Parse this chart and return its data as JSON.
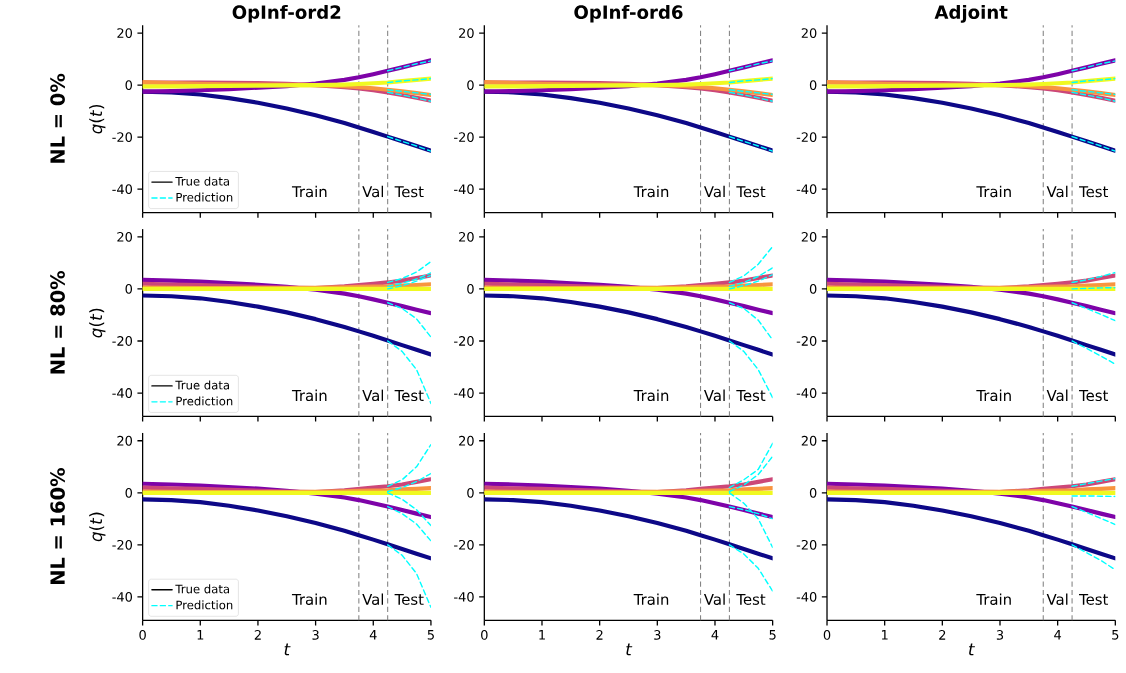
{
  "chart_data": [
    {
      "type": "line",
      "title": "OpInf-ord2",
      "ylabel": "*q*(*t*)",
      "legend": "bottom left",
      "tick_labels": "y",
      "x": [
        0,
        0.5,
        1,
        1.5,
        2,
        2.5,
        3,
        3.5,
        3.75,
        4,
        4.25,
        4.5,
        4.75,
        5
      ],
      "xlim": [
        0,
        5
      ],
      "ylim": [
        -49,
        23
      ],
      "xticks": [
        0,
        1,
        2,
        3,
        4,
        5
      ],
      "yticks": [
        -40,
        -20,
        0,
        20
      ],
      "ref_lines": [
        {
          "axis": "x",
          "value": 3.75,
          "color": "#808080",
          "line_style": "dashed"
        },
        {
          "axis": "x",
          "value": 4.25,
          "color": "#808080",
          "line_style": "dashed"
        }
      ],
      "subtitle": "NL = 0%",
      "annotations": [
        "Train",
        "Val",
        "Test"
      ],
      "series": [
        {
          "name": "True data",
          "color": "#000000",
          "line_style": "solid",
          "values": [
            null,
            null,
            null,
            null,
            null,
            null,
            null,
            null,
            null,
            null,
            null,
            null,
            null,
            null
          ]
        },
        {
          "color": "#0d0887",
          "line_style": "solid",
          "values": [
            -2.5,
            -2.8,
            -3.6,
            -5,
            -6.8,
            -9,
            -11.6,
            -14.6,
            -16.3,
            -18,
            -19.8,
            -21.6,
            -23.4,
            -25.2
          ]
        },
        {
          "color": "#7e03a8",
          "line_style": "solid",
          "values": [
            -2.5,
            -2.3,
            -2,
            -1.6,
            -1,
            -0.4,
            0.6,
            2,
            3,
            4.2,
            5.5,
            6.8,
            8.2,
            9.5
          ]
        },
        {
          "color": "#cc4778",
          "line_style": "solid",
          "values": [
            1,
            1,
            1,
            0.9,
            0.8,
            0.5,
            0,
            -0.8,
            -1.3,
            -2,
            -2.8,
            -3.8,
            -4.9,
            -6
          ]
        },
        {
          "color": "#f89540",
          "line_style": "solid",
          "values": [
            1.2,
            0.8,
            0.5,
            0.3,
            0.2,
            0.1,
            0,
            -0.4,
            -0.8,
            -1.2,
            -1.8,
            -2.4,
            -3.1,
            -3.8
          ]
        },
        {
          "color": "#f0f921",
          "line_style": "solid",
          "values": [
            -0.5,
            -0.5,
            -0.4,
            -0.3,
            -0.2,
            -0.1,
            0,
            0.2,
            0.4,
            0.7,
            1,
            1.5,
            2,
            2.5
          ]
        },
        {
          "name": "Prediction",
          "color": "#00ffff",
          "line_style": "dashed",
          "x": [
            4.25,
            4.5,
            4.75,
            5
          ],
          "values": [
            -19.8,
            -21.6,
            -23.4,
            -25.4
          ]
        },
        {
          "color": "#00ffff",
          "line_style": "dashed",
          "x": [
            4.25,
            4.5,
            4.75,
            5
          ],
          "values": [
            5.5,
            6.8,
            8.2,
            9.3
          ]
        },
        {
          "color": "#00ffff",
          "line_style": "dashed",
          "x": [
            4.25,
            4.5,
            4.75,
            5
          ],
          "values": [
            1,
            1.6,
            2,
            2.5
          ]
        },
        {
          "color": "#00ffff",
          "line_style": "dashed",
          "x": [
            4.25,
            4.5,
            4.75,
            5
          ],
          "values": [
            -2.8,
            -3.8,
            -4.9,
            -6.2
          ]
        },
        {
          "color": "#00ffff",
          "line_style": "dashed",
          "x": [
            4.25,
            4.5,
            4.75,
            5
          ],
          "values": [
            -1.8,
            -2.4,
            -3,
            -3.6
          ]
        }
      ]
    },
    {
      "type": "line",
      "title": "OpInf-ord6",
      "tick_labels": "y",
      "x": [
        0,
        0.5,
        1,
        1.5,
        2,
        2.5,
        3,
        3.5,
        3.75,
        4,
        4.25,
        4.5,
        4.75,
        5
      ],
      "xlim": [
        0,
        5
      ],
      "ylim": [
        -49,
        23
      ],
      "xticks": [
        0,
        1,
        2,
        3,
        4,
        5
      ],
      "yticks": [
        -40,
        -20,
        0,
        20
      ],
      "ref_lines": [
        {
          "axis": "x",
          "value": 3.75,
          "color": "#808080",
          "line_style": "dashed"
        },
        {
          "axis": "x",
          "value": 4.25,
          "color": "#808080",
          "line_style": "dashed"
        }
      ],
      "annotations": [
        "Train",
        "Val",
        "Test"
      ],
      "series": [
        {
          "color": "#0d0887",
          "line_style": "solid",
          "values": [
            -2.5,
            -2.8,
            -3.6,
            -5,
            -6.8,
            -9,
            -11.6,
            -14.6,
            -16.3,
            -18,
            -19.8,
            -21.6,
            -23.4,
            -25.2
          ]
        },
        {
          "color": "#7e03a8",
          "line_style": "solid",
          "values": [
            -2.5,
            -2.3,
            -2,
            -1.6,
            -1,
            -0.4,
            0.6,
            2,
            3,
            4.2,
            5.5,
            6.8,
            8.2,
            9.5
          ]
        },
        {
          "color": "#cc4778",
          "line_style": "solid",
          "values": [
            1,
            1,
            1,
            0.9,
            0.8,
            0.5,
            0,
            -0.8,
            -1.3,
            -2,
            -2.8,
            -3.8,
            -4.9,
            -6
          ]
        },
        {
          "color": "#f89540",
          "line_style": "solid",
          "values": [
            1.2,
            0.8,
            0.5,
            0.3,
            0.2,
            0.1,
            0,
            -0.4,
            -0.8,
            -1.2,
            -1.8,
            -2.4,
            -3.1,
            -3.8
          ]
        },
        {
          "color": "#f0f921",
          "line_style": "solid",
          "values": [
            -0.5,
            -0.5,
            -0.4,
            -0.3,
            -0.2,
            -0.1,
            0,
            0.2,
            0.4,
            0.7,
            1,
            1.5,
            2,
            2.5
          ]
        },
        {
          "color": "#00ffff",
          "line_style": "dashed",
          "x": [
            4.25,
            4.5,
            4.75,
            5
          ],
          "values": [
            -19.8,
            -21.6,
            -23.4,
            -25.4
          ]
        },
        {
          "color": "#00ffff",
          "line_style": "dashed",
          "x": [
            4.25,
            4.5,
            4.75,
            5
          ],
          "values": [
            5.5,
            6.8,
            8.2,
            9.3
          ]
        },
        {
          "color": "#00ffff",
          "line_style": "dashed",
          "x": [
            4.25,
            4.5,
            4.75,
            5
          ],
          "values": [
            1,
            1.6,
            2,
            2.5
          ]
        },
        {
          "color": "#00ffff",
          "line_style": "dashed",
          "x": [
            4.25,
            4.5,
            4.75,
            5
          ],
          "values": [
            -2.8,
            -3.8,
            -4.9,
            -6.2
          ]
        },
        {
          "color": "#00ffff",
          "line_style": "dashed",
          "x": [
            4.25,
            4.5,
            4.75,
            5
          ],
          "values": [
            -1.8,
            -2.4,
            -3,
            -3.6
          ]
        }
      ]
    },
    {
      "type": "line",
      "title": "Adjoint",
      "tick_labels": "y",
      "x": [
        0,
        0.5,
        1,
        1.5,
        2,
        2.5,
        3,
        3.5,
        3.75,
        4,
        4.25,
        4.5,
        4.75,
        5
      ],
      "xlim": [
        0,
        5
      ],
      "ylim": [
        -49,
        23
      ],
      "xticks": [
        0,
        1,
        2,
        3,
        4,
        5
      ],
      "yticks": [
        -40,
        -20,
        0,
        20
      ],
      "ref_lines": [
        {
          "axis": "x",
          "value": 3.75,
          "color": "#808080",
          "line_style": "dashed"
        },
        {
          "axis": "x",
          "value": 4.25,
          "color": "#808080",
          "line_style": "dashed"
        }
      ],
      "annotations": [
        "Train",
        "Val",
        "Test"
      ],
      "series": [
        {
          "color": "#0d0887",
          "line_style": "solid",
          "values": [
            -2.5,
            -2.8,
            -3.6,
            -5,
            -6.8,
            -9,
            -11.6,
            -14.6,
            -16.3,
            -18,
            -19.8,
            -21.6,
            -23.4,
            -25.2
          ]
        },
        {
          "color": "#7e03a8",
          "line_style": "solid",
          "values": [
            -2.5,
            -2.3,
            -2,
            -1.6,
            -1,
            -0.4,
            0.6,
            2,
            3,
            4.2,
            5.5,
            6.8,
            8.2,
            9.5
          ]
        },
        {
          "color": "#cc4778",
          "line_style": "solid",
          "values": [
            1,
            1,
            1,
            0.9,
            0.8,
            0.5,
            0,
            -0.8,
            -1.3,
            -2,
            -2.8,
            -3.8,
            -4.9,
            -6
          ]
        },
        {
          "color": "#f89540",
          "line_style": "solid",
          "values": [
            1.2,
            0.8,
            0.5,
            0.3,
            0.2,
            0.1,
            0,
            -0.4,
            -0.8,
            -1.2,
            -1.8,
            -2.4,
            -3.1,
            -3.8
          ]
        },
        {
          "color": "#f0f921",
          "line_style": "solid",
          "values": [
            -0.5,
            -0.5,
            -0.4,
            -0.3,
            -0.2,
            -0.1,
            0,
            0.2,
            0.4,
            0.7,
            1,
            1.5,
            2,
            2.5
          ]
        },
        {
          "color": "#00ffff",
          "line_style": "dashed",
          "x": [
            4.25,
            4.5,
            4.75,
            5
          ],
          "values": [
            -19.8,
            -21.6,
            -23.4,
            -25.4
          ]
        },
        {
          "color": "#00ffff",
          "line_style": "dashed",
          "x": [
            4.25,
            4.5,
            4.75,
            5
          ],
          "values": [
            5.5,
            6.8,
            8.2,
            9.3
          ]
        },
        {
          "color": "#00ffff",
          "line_style": "dashed",
          "x": [
            4.25,
            4.5,
            4.75,
            5
          ],
          "values": [
            1,
            1.6,
            2,
            2.5
          ]
        },
        {
          "color": "#00ffff",
          "line_style": "dashed",
          "x": [
            4.25,
            4.5,
            4.75,
            5
          ],
          "values": [
            -2.8,
            -3.8,
            -4.9,
            -6.2
          ]
        },
        {
          "color": "#00ffff",
          "line_style": "dashed",
          "x": [
            4.25,
            4.5,
            4.75,
            5
          ],
          "values": [
            -1.8,
            -2.4,
            -3,
            -3.6
          ]
        }
      ]
    },
    {
      "type": "line",
      "ylabel": "*q*(*t*)",
      "legend": "bottom left",
      "tick_labels": "y",
      "x": [
        0,
        0.5,
        1,
        1.5,
        2,
        2.5,
        3,
        3.5,
        3.75,
        4,
        4.25,
        4.5,
        4.75,
        5
      ],
      "xlim": [
        0,
        5
      ],
      "ylim": [
        -49,
        23
      ],
      "xticks": [
        0,
        1,
        2,
        3,
        4,
        5
      ],
      "yticks": [
        -40,
        -20,
        0,
        20
      ],
      "ref_lines": [
        {
          "axis": "x",
          "value": 3.75,
          "color": "#808080",
          "line_style": "dashed"
        },
        {
          "axis": "x",
          "value": 4.25,
          "color": "#808080",
          "line_style": "dashed"
        }
      ],
      "subtitle": "NL = 80%",
      "annotations": [
        "Train",
        "Val",
        "Test"
      ],
      "series": [
        {
          "name": "True data",
          "color": "#000000",
          "line_style": "solid",
          "values": [
            null,
            null,
            null,
            null,
            null,
            null,
            null,
            null,
            null,
            null,
            null,
            null,
            null,
            null
          ]
        },
        {
          "color": "#0d0887",
          "line_style": "solid",
          "values": [
            -2.5,
            -2.8,
            -3.6,
            -5,
            -6.8,
            -9,
            -11.6,
            -14.6,
            -16.3,
            -18,
            -19.8,
            -21.6,
            -23.4,
            -25.2
          ]
        },
        {
          "color": "#7e03a8",
          "line_style": "solid",
          "values": [
            3.5,
            3.2,
            2.8,
            2.2,
            1.6,
            0.8,
            -0.3,
            -1.8,
            -2.8,
            -4,
            -5.3,
            -6.6,
            -8,
            -9.3
          ]
        },
        {
          "color": "#cc4778",
          "line_style": "solid",
          "values": [
            2,
            1.7,
            1.5,
            1.1,
            0.8,
            0.5,
            0.3,
            1,
            1.5,
            2,
            2.5,
            3.2,
            4.2,
            5.2
          ]
        },
        {
          "color": "#f89540",
          "line_style": "solid",
          "values": [
            0.5,
            0.4,
            0.3,
            0.3,
            0.3,
            0.3,
            0.4,
            0.6,
            0.8,
            0.9,
            1,
            1.3,
            1.5,
            1.8
          ]
        },
        {
          "color": "#f0f921",
          "line_style": "solid",
          "values": [
            0,
            0,
            0,
            0,
            0,
            0,
            0,
            0,
            0,
            0,
            0,
            0,
            0,
            0
          ]
        },
        {
          "name": "Prediction",
          "color": "#00ffff",
          "line_style": "dashed",
          "x": [
            4.25,
            4.5,
            4.75,
            5
          ],
          "values": [
            -20,
            -24,
            -31,
            -44
          ]
        },
        {
          "color": "#00ffff",
          "line_style": "dashed",
          "x": [
            4.25,
            4.5,
            4.75,
            5
          ],
          "values": [
            -5.3,
            -7.5,
            -11.5,
            -18.5
          ]
        },
        {
          "color": "#00ffff",
          "line_style": "dashed",
          "x": [
            4.25,
            4.5,
            4.75,
            5
          ],
          "values": [
            2.5,
            4,
            6.5,
            10.5
          ]
        },
        {
          "color": "#00ffff",
          "line_style": "dashed",
          "x": [
            4.25,
            4.5,
            4.75,
            5
          ],
          "values": [
            1,
            2.2,
            3.8,
            6.2
          ]
        },
        {
          "color": "#00ffff",
          "line_style": "dashed",
          "x": [
            4.25,
            4.5,
            4.75,
            5
          ],
          "values": [
            0,
            1.2,
            3,
            5.2
          ]
        }
      ]
    },
    {
      "type": "line",
      "tick_labels": "y",
      "x": [
        0,
        0.5,
        1,
        1.5,
        2,
        2.5,
        3,
        3.5,
        3.75,
        4,
        4.25,
        4.5,
        4.75,
        5
      ],
      "xlim": [
        0,
        5
      ],
      "ylim": [
        -49,
        23
      ],
      "xticks": [
        0,
        1,
        2,
        3,
        4,
        5
      ],
      "yticks": [
        -40,
        -20,
        0,
        20
      ],
      "ref_lines": [
        {
          "axis": "x",
          "value": 3.75,
          "color": "#808080",
          "line_style": "dashed"
        },
        {
          "axis": "x",
          "value": 4.25,
          "color": "#808080",
          "line_style": "dashed"
        }
      ],
      "annotations": [
        "Train",
        "Val",
        "Test"
      ],
      "series": [
        {
          "color": "#0d0887",
          "line_style": "solid",
          "values": [
            -2.5,
            -2.8,
            -3.6,
            -5,
            -6.8,
            -9,
            -11.6,
            -14.6,
            -16.3,
            -18,
            -19.8,
            -21.6,
            -23.4,
            -25.2
          ]
        },
        {
          "color": "#7e03a8",
          "line_style": "solid",
          "values": [
            3.5,
            3.2,
            2.8,
            2.2,
            1.6,
            0.8,
            -0.3,
            -1.8,
            -2.8,
            -4,
            -5.3,
            -6.6,
            -8,
            -9.3
          ]
        },
        {
          "color": "#cc4778",
          "line_style": "solid",
          "values": [
            2,
            1.7,
            1.5,
            1.1,
            0.8,
            0.5,
            0.3,
            1,
            1.5,
            2,
            2.5,
            3.2,
            4.2,
            5.2
          ]
        },
        {
          "color": "#f89540",
          "line_style": "solid",
          "values": [
            0.5,
            0.4,
            0.3,
            0.3,
            0.3,
            0.3,
            0.4,
            0.6,
            0.8,
            0.9,
            1,
            1.3,
            1.5,
            1.8
          ]
        },
        {
          "color": "#f0f921",
          "line_style": "solid",
          "values": [
            0,
            0,
            0,
            0,
            0,
            0,
            0,
            0,
            0,
            0,
            0,
            0,
            0,
            0
          ]
        },
        {
          "color": "#00ffff",
          "line_style": "dashed",
          "x": [
            4.25,
            4.5,
            4.75,
            5
          ],
          "values": [
            -20,
            -24,
            -31,
            -41.8
          ]
        },
        {
          "color": "#00ffff",
          "line_style": "dashed",
          "x": [
            4.25,
            4.5,
            4.75,
            5
          ],
          "values": [
            -5.3,
            -7.5,
            -12,
            -19.6
          ]
        },
        {
          "color": "#00ffff",
          "line_style": "dashed",
          "x": [
            4.25,
            4.5,
            4.75,
            5
          ],
          "values": [
            2.5,
            5,
            9.5,
            16.3
          ]
        },
        {
          "color": "#00ffff",
          "line_style": "dashed",
          "x": [
            4.25,
            4.5,
            4.75,
            5
          ],
          "values": [
            1,
            2.5,
            4.8,
            8.1
          ]
        },
        {
          "color": "#00ffff",
          "line_style": "dashed",
          "x": [
            4.25,
            4.5,
            4.75,
            5
          ],
          "values": [
            0,
            1.3,
            3,
            5.5
          ]
        }
      ]
    },
    {
      "type": "line",
      "tick_labels": "y",
      "x": [
        0,
        0.5,
        1,
        1.5,
        2,
        2.5,
        3,
        3.5,
        3.75,
        4,
        4.25,
        4.5,
        4.75,
        5
      ],
      "xlim": [
        0,
        5
      ],
      "ylim": [
        -49,
        23
      ],
      "xticks": [
        0,
        1,
        2,
        3,
        4,
        5
      ],
      "yticks": [
        -40,
        -20,
        0,
        20
      ],
      "ref_lines": [
        {
          "axis": "x",
          "value": 3.75,
          "color": "#808080",
          "line_style": "dashed"
        },
        {
          "axis": "x",
          "value": 4.25,
          "color": "#808080",
          "line_style": "dashed"
        }
      ],
      "annotations": [
        "Train",
        "Val",
        "Test"
      ],
      "series": [
        {
          "color": "#0d0887",
          "line_style": "solid",
          "values": [
            -2.5,
            -2.8,
            -3.6,
            -5,
            -6.8,
            -9,
            -11.6,
            -14.6,
            -16.3,
            -18,
            -19.8,
            -21.6,
            -23.4,
            -25.2
          ]
        },
        {
          "color": "#7e03a8",
          "line_style": "solid",
          "values": [
            3.5,
            3.2,
            2.8,
            2.2,
            1.6,
            0.8,
            -0.3,
            -1.8,
            -2.8,
            -4,
            -5.3,
            -6.6,
            -8,
            -9.3
          ]
        },
        {
          "color": "#cc4778",
          "line_style": "solid",
          "values": [
            2,
            1.7,
            1.5,
            1.1,
            0.8,
            0.5,
            0.3,
            1,
            1.5,
            2,
            2.5,
            3.2,
            4.2,
            5.2
          ]
        },
        {
          "color": "#f89540",
          "line_style": "solid",
          "values": [
            0.5,
            0.4,
            0.3,
            0.3,
            0.3,
            0.3,
            0.4,
            0.6,
            0.8,
            0.9,
            1,
            1.3,
            1.5,
            1.8
          ]
        },
        {
          "color": "#f0f921",
          "line_style": "solid",
          "values": [
            0,
            0,
            0,
            0,
            0,
            0,
            0,
            0,
            0,
            0,
            0,
            0,
            0,
            0
          ]
        },
        {
          "color": "#00ffff",
          "line_style": "dashed",
          "x": [
            4.25,
            4.5,
            4.75,
            5
          ],
          "values": [
            -20,
            -22.8,
            -25.8,
            -28.9
          ]
        },
        {
          "color": "#00ffff",
          "line_style": "dashed",
          "x": [
            4.25,
            4.5,
            4.75,
            5
          ],
          "values": [
            -5.3,
            -7.5,
            -9.8,
            -12.2
          ]
        },
        {
          "color": "#00ffff",
          "line_style": "dashed",
          "x": [
            4.25,
            4.5,
            4.75,
            5
          ],
          "values": [
            2.5,
            3.5,
            4.8,
            6.3
          ]
        },
        {
          "color": "#00ffff",
          "line_style": "dashed",
          "x": [
            4.25,
            4.5,
            4.75,
            5
          ],
          "values": [
            0,
            0.2,
            0.4,
            0.5
          ]
        }
      ]
    },
    {
      "type": "line",
      "ylabel": "*q*(*t*)",
      "xlabel": "t",
      "legend": "bottom left",
      "x": [
        0,
        0.5,
        1,
        1.5,
        2,
        2.5,
        3,
        3.5,
        3.75,
        4,
        4.25,
        4.5,
        4.75,
        5
      ],
      "xlim": [
        0,
        5
      ],
      "ylim": [
        -49,
        23
      ],
      "xticks": [
        0,
        1,
        2,
        3,
        4,
        5
      ],
      "yticks": [
        -40,
        -20,
        0,
        20
      ],
      "ref_lines": [
        {
          "axis": "x",
          "value": 3.75,
          "color": "#808080",
          "line_style": "dashed"
        },
        {
          "axis": "x",
          "value": 4.25,
          "color": "#808080",
          "line_style": "dashed"
        }
      ],
      "subtitle": "NL = 160%",
      "annotations": [
        "Train",
        "Val",
        "Test"
      ],
      "series": [
        {
          "name": "True data",
          "color": "#000000",
          "line_style": "solid",
          "values": [
            null,
            null,
            null,
            null,
            null,
            null,
            null,
            null,
            null,
            null,
            null,
            null,
            null,
            null
          ]
        },
        {
          "color": "#0d0887",
          "line_style": "solid",
          "values": [
            -2.5,
            -2.8,
            -3.6,
            -5,
            -6.8,
            -9,
            -11.6,
            -14.6,
            -16.3,
            -18,
            -19.8,
            -21.6,
            -23.4,
            -25.2
          ]
        },
        {
          "color": "#7e03a8",
          "line_style": "solid",
          "values": [
            3.5,
            3.2,
            2.8,
            2.2,
            1.6,
            0.8,
            -0.3,
            -1.8,
            -2.8,
            -4,
            -5.3,
            -6.6,
            -8,
            -9.3
          ]
        },
        {
          "color": "#cc4778",
          "line_style": "solid",
          "values": [
            2,
            1.7,
            1.5,
            1.1,
            0.8,
            0.5,
            0.3,
            1,
            1.5,
            2,
            2.5,
            3.2,
            4.2,
            5.2
          ]
        },
        {
          "color": "#f89540",
          "line_style": "solid",
          "values": [
            0.5,
            0.4,
            0.3,
            0.3,
            0.3,
            0.3,
            0.4,
            0.6,
            0.8,
            0.9,
            1,
            1.3,
            1.5,
            1.8
          ]
        },
        {
          "color": "#f0f921",
          "line_style": "solid",
          "values": [
            0,
            0,
            0,
            0,
            0,
            0,
            0,
            0,
            0,
            0,
            0,
            0,
            0,
            0
          ]
        },
        {
          "name": "Prediction",
          "color": "#00ffff",
          "line_style": "dashed",
          "x": [
            4.25,
            4.5,
            4.75,
            5
          ],
          "values": [
            -20,
            -24,
            -31,
            -44
          ]
        },
        {
          "color": "#00ffff",
          "line_style": "dashed",
          "x": [
            4.25,
            4.5,
            4.75,
            5
          ],
          "values": [
            -5.3,
            -8,
            -12,
            -18.5
          ]
        },
        {
          "color": "#00ffff",
          "line_style": "dashed",
          "x": [
            4.25,
            4.5,
            4.75,
            5
          ],
          "values": [
            0,
            -2.5,
            -6.5,
            -12.6
          ]
        },
        {
          "color": "#00ffff",
          "line_style": "dashed",
          "x": [
            4.25,
            4.5,
            4.75,
            5
          ],
          "values": [
            2.5,
            5,
            10,
            18.5
          ]
        },
        {
          "color": "#00ffff",
          "line_style": "dashed",
          "x": [
            4.25,
            4.5,
            4.75,
            5
          ],
          "values": [
            0.5,
            2,
            4.3,
            7.4
          ]
        }
      ]
    },
    {
      "type": "line",
      "xlabel": "t",
      "x": [
        0,
        0.5,
        1,
        1.5,
        2,
        2.5,
        3,
        3.5,
        3.75,
        4,
        4.25,
        4.5,
        4.75,
        5
      ],
      "xlim": [
        0,
        5
      ],
      "ylim": [
        -49,
        23
      ],
      "xticks": [
        0,
        1,
        2,
        3,
        4,
        5
      ],
      "yticks": [
        -40,
        -20,
        0,
        20
      ],
      "ref_lines": [
        {
          "axis": "x",
          "value": 3.75,
          "color": "#808080",
          "line_style": "dashed"
        },
        {
          "axis": "x",
          "value": 4.25,
          "color": "#808080",
          "line_style": "dashed"
        }
      ],
      "annotations": [
        "Train",
        "Val",
        "Test"
      ],
      "series": [
        {
          "color": "#0d0887",
          "line_style": "solid",
          "values": [
            -2.5,
            -2.8,
            -3.6,
            -5,
            -6.8,
            -9,
            -11.6,
            -14.6,
            -16.3,
            -18,
            -19.8,
            -21.6,
            -23.4,
            -25.2
          ]
        },
        {
          "color": "#7e03a8",
          "line_style": "solid",
          "values": [
            3.5,
            3.2,
            2.8,
            2.2,
            1.6,
            0.8,
            -0.3,
            -1.8,
            -2.8,
            -4,
            -5.3,
            -6.6,
            -8,
            -9.3
          ]
        },
        {
          "color": "#cc4778",
          "line_style": "solid",
          "values": [
            2,
            1.7,
            1.5,
            1.1,
            0.8,
            0.5,
            0.3,
            1,
            1.5,
            2,
            2.5,
            3.2,
            4.2,
            5.2
          ]
        },
        {
          "color": "#f89540",
          "line_style": "solid",
          "values": [
            0.5,
            0.4,
            0.3,
            0.3,
            0.3,
            0.3,
            0.4,
            0.6,
            0.8,
            0.9,
            1,
            1.3,
            1.5,
            1.8
          ]
        },
        {
          "color": "#f0f921",
          "line_style": "solid",
          "values": [
            0,
            0,
            0,
            0,
            0,
            0,
            0,
            0,
            0,
            0,
            0,
            0,
            0,
            0
          ]
        },
        {
          "color": "#00ffff",
          "line_style": "dashed",
          "x": [
            4.25,
            4.5,
            4.75,
            5
          ],
          "values": [
            -20,
            -23.5,
            -29,
            -37.8
          ]
        },
        {
          "color": "#00ffff",
          "line_style": "dashed",
          "x": [
            4.25,
            4.5,
            4.75,
            5
          ],
          "values": [
            -5.3,
            -6.5,
            -8,
            -10
          ]
        },
        {
          "color": "#00ffff",
          "line_style": "dashed",
          "x": [
            4.25,
            4.5,
            4.75,
            5
          ],
          "values": [
            0,
            -4,
            -10,
            -21
          ]
        },
        {
          "color": "#00ffff",
          "line_style": "dashed",
          "x": [
            4.25,
            4.5,
            4.75,
            5
          ],
          "values": [
            2,
            5,
            9,
            19
          ]
        },
        {
          "color": "#00ffff",
          "line_style": "dashed",
          "x": [
            4.25,
            4.5,
            4.75,
            5
          ],
          "values": [
            0.5,
            3,
            7,
            14
          ]
        }
      ]
    },
    {
      "type": "line",
      "xlabel": "t",
      "x": [
        0,
        0.5,
        1,
        1.5,
        2,
        2.5,
        3,
        3.5,
        3.75,
        4,
        4.25,
        4.5,
        4.75,
        5
      ],
      "xlim": [
        0,
        5
      ],
      "ylim": [
        -49,
        23
      ],
      "xticks": [
        0,
        1,
        2,
        3,
        4,
        5
      ],
      "yticks": [
        -40,
        -20,
        0,
        20
      ],
      "ref_lines": [
        {
          "axis": "x",
          "value": 3.75,
          "color": "#808080",
          "line_style": "dashed"
        },
        {
          "axis": "x",
          "value": 4.25,
          "color": "#808080",
          "line_style": "dashed"
        }
      ],
      "annotations": [
        "Train",
        "Val",
        "Test"
      ],
      "series": [
        {
          "color": "#0d0887",
          "line_style": "solid",
          "values": [
            -2.5,
            -2.8,
            -3.6,
            -5,
            -6.8,
            -9,
            -11.6,
            -14.6,
            -16.3,
            -18,
            -19.8,
            -21.6,
            -23.4,
            -25.2
          ]
        },
        {
          "color": "#7e03a8",
          "line_style": "solid",
          "values": [
            3.5,
            3.2,
            2.8,
            2.2,
            1.6,
            0.8,
            -0.3,
            -1.8,
            -2.8,
            -4,
            -5.3,
            -6.6,
            -8,
            -9.3
          ]
        },
        {
          "color": "#cc4778",
          "line_style": "solid",
          "values": [
            2,
            1.7,
            1.5,
            1.1,
            0.8,
            0.5,
            0.3,
            1,
            1.5,
            2,
            2.5,
            3.2,
            4.2,
            5.2
          ]
        },
        {
          "color": "#f89540",
          "line_style": "solid",
          "values": [
            0.5,
            0.4,
            0.3,
            0.3,
            0.3,
            0.3,
            0.4,
            0.6,
            0.8,
            0.9,
            1,
            1.3,
            1.5,
            1.8
          ]
        },
        {
          "color": "#f0f921",
          "line_style": "solid",
          "values": [
            0,
            0,
            0,
            0,
            0,
            0,
            0,
            0,
            0,
            0,
            0,
            0,
            0,
            0
          ]
        },
        {
          "color": "#00ffff",
          "line_style": "dashed",
          "x": [
            4.25,
            4.5,
            4.75,
            5
          ],
          "values": [
            -20,
            -23,
            -26,
            -29.6
          ]
        },
        {
          "color": "#00ffff",
          "line_style": "dashed",
          "x": [
            4.25,
            4.5,
            4.75,
            5
          ],
          "values": [
            -5.3,
            -7.5,
            -9.8,
            -12.2
          ]
        },
        {
          "color": "#00ffff",
          "line_style": "dashed",
          "x": [
            4.25,
            4.5,
            4.75,
            5
          ],
          "values": [
            2.5,
            3.5,
            4.5,
            5.5
          ]
        },
        {
          "color": "#00ffff",
          "line_style": "dashed",
          "x": [
            4.25,
            4.5,
            4.75,
            5
          ],
          "values": [
            -1.2,
            -1.2,
            -1.3,
            -1.4
          ]
        }
      ]
    }
  ]
}
